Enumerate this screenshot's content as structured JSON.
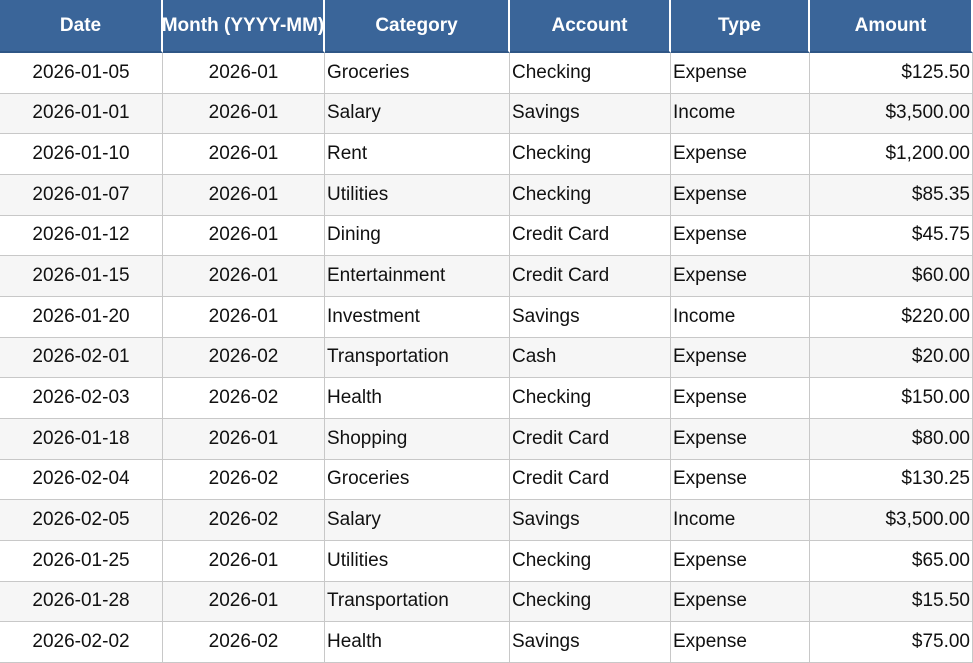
{
  "table": {
    "headers": [
      "Date",
      "Month (YYYY-MM)",
      "Category",
      "Account",
      "Type",
      "Amount"
    ],
    "rows": [
      [
        "2026-01-05",
        "2026-01",
        "Groceries",
        "Checking",
        "Expense",
        "$125.50"
      ],
      [
        "2026-01-01",
        "2026-01",
        "Salary",
        "Savings",
        "Income",
        "$3,500.00"
      ],
      [
        "2026-01-10",
        "2026-01",
        "Rent",
        "Checking",
        "Expense",
        "$1,200.00"
      ],
      [
        "2026-01-07",
        "2026-01",
        "Utilities",
        "Checking",
        "Expense",
        "$85.35"
      ],
      [
        "2026-01-12",
        "2026-01",
        "Dining",
        "Credit Card",
        "Expense",
        "$45.75"
      ],
      [
        "2026-01-15",
        "2026-01",
        "Entertainment",
        "Credit Card",
        "Expense",
        "$60.00"
      ],
      [
        "2026-01-20",
        "2026-01",
        "Investment",
        "Savings",
        "Income",
        "$220.00"
      ],
      [
        "2026-02-01",
        "2026-02",
        "Transportation",
        "Cash",
        "Expense",
        "$20.00"
      ],
      [
        "2026-02-03",
        "2026-02",
        "Health",
        "Checking",
        "Expense",
        "$150.00"
      ],
      [
        "2026-01-18",
        "2026-01",
        "Shopping",
        "Credit Card",
        "Expense",
        "$80.00"
      ],
      [
        "2026-02-04",
        "2026-02",
        "Groceries",
        "Credit Card",
        "Expense",
        "$130.25"
      ],
      [
        "2026-02-05",
        "2026-02",
        "Salary",
        "Savings",
        "Income",
        "$3,500.00"
      ],
      [
        "2026-01-25",
        "2026-01",
        "Utilities",
        "Checking",
        "Expense",
        "$65.00"
      ],
      [
        "2026-01-28",
        "2026-01",
        "Transportation",
        "Checking",
        "Expense",
        "$15.50"
      ],
      [
        "2026-02-02",
        "2026-02",
        "Health",
        "Savings",
        "Expense",
        "$75.00"
      ]
    ]
  }
}
